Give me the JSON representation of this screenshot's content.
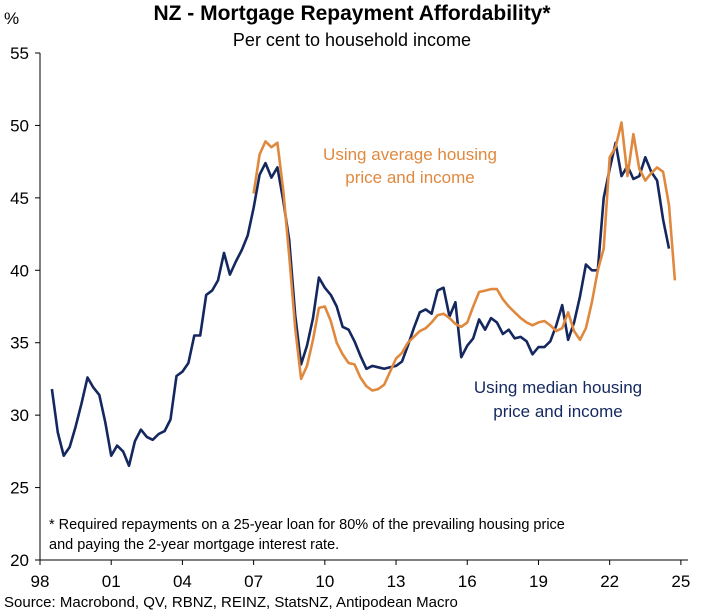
{
  "chart_data": {
    "type": "line",
    "title": "NZ - Mortgage Repayment Affordability*",
    "subtitle": "Per cent to household income",
    "ylabel": "%",
    "xlabel": "",
    "ylim": [
      20,
      55
    ],
    "xlim": [
      1998,
      2025.3
    ],
    "yticks": [
      20,
      25,
      30,
      35,
      40,
      45,
      50,
      55
    ],
    "xticks": [
      1998,
      2001,
      2004,
      2007,
      2010,
      2013,
      2016,
      2019,
      2022,
      2025
    ],
    "xtick_labels": [
      "98",
      "01",
      "04",
      "07",
      "10",
      "13",
      "16",
      "19",
      "22",
      "25"
    ],
    "grid": false,
    "legend": "inline annotations",
    "series": [
      {
        "name": "Using median housing price and income",
        "color": "#14285f",
        "x": [
          1998.5,
          1998.75,
          1999.0,
          1999.25,
          1999.5,
          1999.75,
          2000.0,
          2000.25,
          2000.5,
          2000.75,
          2001.0,
          2001.25,
          2001.5,
          2001.75,
          2002.0,
          2002.25,
          2002.5,
          2002.75,
          2003.0,
          2003.25,
          2003.5,
          2003.75,
          2004.0,
          2004.25,
          2004.5,
          2004.75,
          2005.0,
          2005.25,
          2005.5,
          2005.75,
          2006.0,
          2006.25,
          2006.5,
          2006.75,
          2007.0,
          2007.25,
          2007.5,
          2007.75,
          2008.0,
          2008.25,
          2008.5,
          2008.75,
          2009.0,
          2009.25,
          2009.5,
          2009.75,
          2010.0,
          2010.25,
          2010.5,
          2010.75,
          2011.0,
          2011.25,
          2011.5,
          2011.75,
          2012.0,
          2012.25,
          2012.5,
          2012.75,
          2013.0,
          2013.25,
          2013.5,
          2013.75,
          2014.0,
          2014.25,
          2014.5,
          2014.75,
          2015.0,
          2015.25,
          2015.5,
          2015.75,
          2016.0,
          2016.25,
          2016.5,
          2016.75,
          2017.0,
          2017.25,
          2017.5,
          2017.75,
          2018.0,
          2018.25,
          2018.5,
          2018.75,
          2019.0,
          2019.25,
          2019.5,
          2019.75,
          2020.0,
          2020.25,
          2020.5,
          2020.75,
          2021.0,
          2021.25,
          2021.5,
          2021.75,
          2022.0,
          2022.25,
          2022.5,
          2022.75,
          2023.0,
          2023.25,
          2023.5,
          2023.75,
          2024.0,
          2024.25,
          2024.5
        ],
        "values": [
          31.8,
          28.8,
          27.2,
          27.8,
          29.2,
          30.8,
          32.6,
          31.9,
          31.4,
          29.5,
          27.2,
          27.9,
          27.5,
          26.5,
          28.2,
          29.0,
          28.5,
          28.3,
          28.7,
          28.9,
          29.7,
          32.7,
          33.0,
          33.6,
          35.5,
          35.5,
          38.3,
          38.6,
          39.3,
          41.2,
          39.7,
          40.6,
          41.4,
          42.4,
          44.3,
          46.6,
          47.4,
          46.4,
          47.1,
          44.8,
          42.1,
          36.9,
          33.5,
          34.8,
          36.7,
          39.5,
          38.8,
          38.3,
          37.5,
          36.1,
          35.9,
          35.1,
          34.1,
          33.2,
          33.4,
          33.3,
          33.2,
          33.3,
          33.4,
          33.7,
          34.8,
          36.0,
          37.1,
          37.3,
          37.0,
          38.6,
          38.8,
          36.8,
          37.8,
          34.0,
          34.8,
          35.3,
          36.6,
          35.9,
          36.7,
          36.4,
          35.6,
          35.9,
          35.3,
          35.4,
          35.1,
          34.2,
          34.7,
          34.7,
          35.1,
          36.2,
          37.6,
          35.2,
          36.4,
          38.2,
          40.4,
          40.0,
          40.0,
          45.0,
          47.0,
          48.8,
          46.5,
          47.2,
          46.3,
          46.5,
          47.8,
          46.8,
          46.2,
          43.5,
          41.5
        ]
      },
      {
        "name": "Using average housing price and income",
        "color": "#e0893e",
        "x": [
          2007.0,
          2007.25,
          2007.5,
          2007.75,
          2008.0,
          2008.25,
          2008.5,
          2008.75,
          2009.0,
          2009.25,
          2009.5,
          2009.75,
          2010.0,
          2010.25,
          2010.5,
          2010.75,
          2011.0,
          2011.25,
          2011.5,
          2011.75,
          2012.0,
          2012.25,
          2012.5,
          2012.75,
          2013.0,
          2013.25,
          2013.5,
          2013.75,
          2014.0,
          2014.25,
          2014.5,
          2014.75,
          2015.0,
          2015.25,
          2015.5,
          2015.75,
          2016.0,
          2016.25,
          2016.5,
          2016.75,
          2017.0,
          2017.25,
          2017.5,
          2017.75,
          2018.0,
          2018.25,
          2018.5,
          2018.75,
          2019.0,
          2019.25,
          2019.5,
          2019.75,
          2020.0,
          2020.25,
          2020.5,
          2020.75,
          2021.0,
          2021.25,
          2021.5,
          2021.75,
          2022.0,
          2022.25,
          2022.5,
          2022.75,
          2023.0,
          2023.25,
          2023.5,
          2023.75,
          2024.0,
          2024.25,
          2024.5,
          2024.75
        ],
        "values": [
          45.3,
          48.0,
          48.9,
          48.5,
          48.8,
          45.5,
          41.0,
          36.0,
          32.5,
          33.4,
          35.2,
          37.4,
          37.5,
          36.5,
          35.0,
          34.2,
          33.6,
          33.5,
          32.6,
          32.0,
          31.7,
          31.8,
          32.1,
          33.0,
          33.9,
          34.3,
          35.0,
          35.4,
          35.8,
          36.0,
          36.4,
          36.9,
          37.0,
          36.7,
          36.3,
          36.1,
          36.4,
          37.5,
          38.5,
          38.6,
          38.7,
          38.7,
          38.0,
          37.5,
          37.1,
          36.7,
          36.4,
          36.2,
          36.4,
          36.5,
          36.2,
          35.8,
          36.0,
          37.1,
          35.8,
          35.2,
          36.0,
          37.8,
          40.0,
          41.5,
          47.8,
          48.5,
          50.2,
          46.5,
          49.4,
          47.0,
          46.2,
          46.7,
          47.1,
          46.8,
          44.5,
          39.3
        ]
      }
    ],
    "annotations": {
      "average_line1": "Using average housing",
      "average_line2": "price and income",
      "median_line1": "Using median housing",
      "median_line2": "price and income"
    },
    "footnote_line1": "* Required repayments on a 25-year loan for 80% of the prevailing housing price",
    "footnote_line2": "and paying the 2-year mortgage interest rate.",
    "source": "Source: Macrobond, QV, RBNZ, REINZ, StatsNZ, Antipodean Macro"
  }
}
